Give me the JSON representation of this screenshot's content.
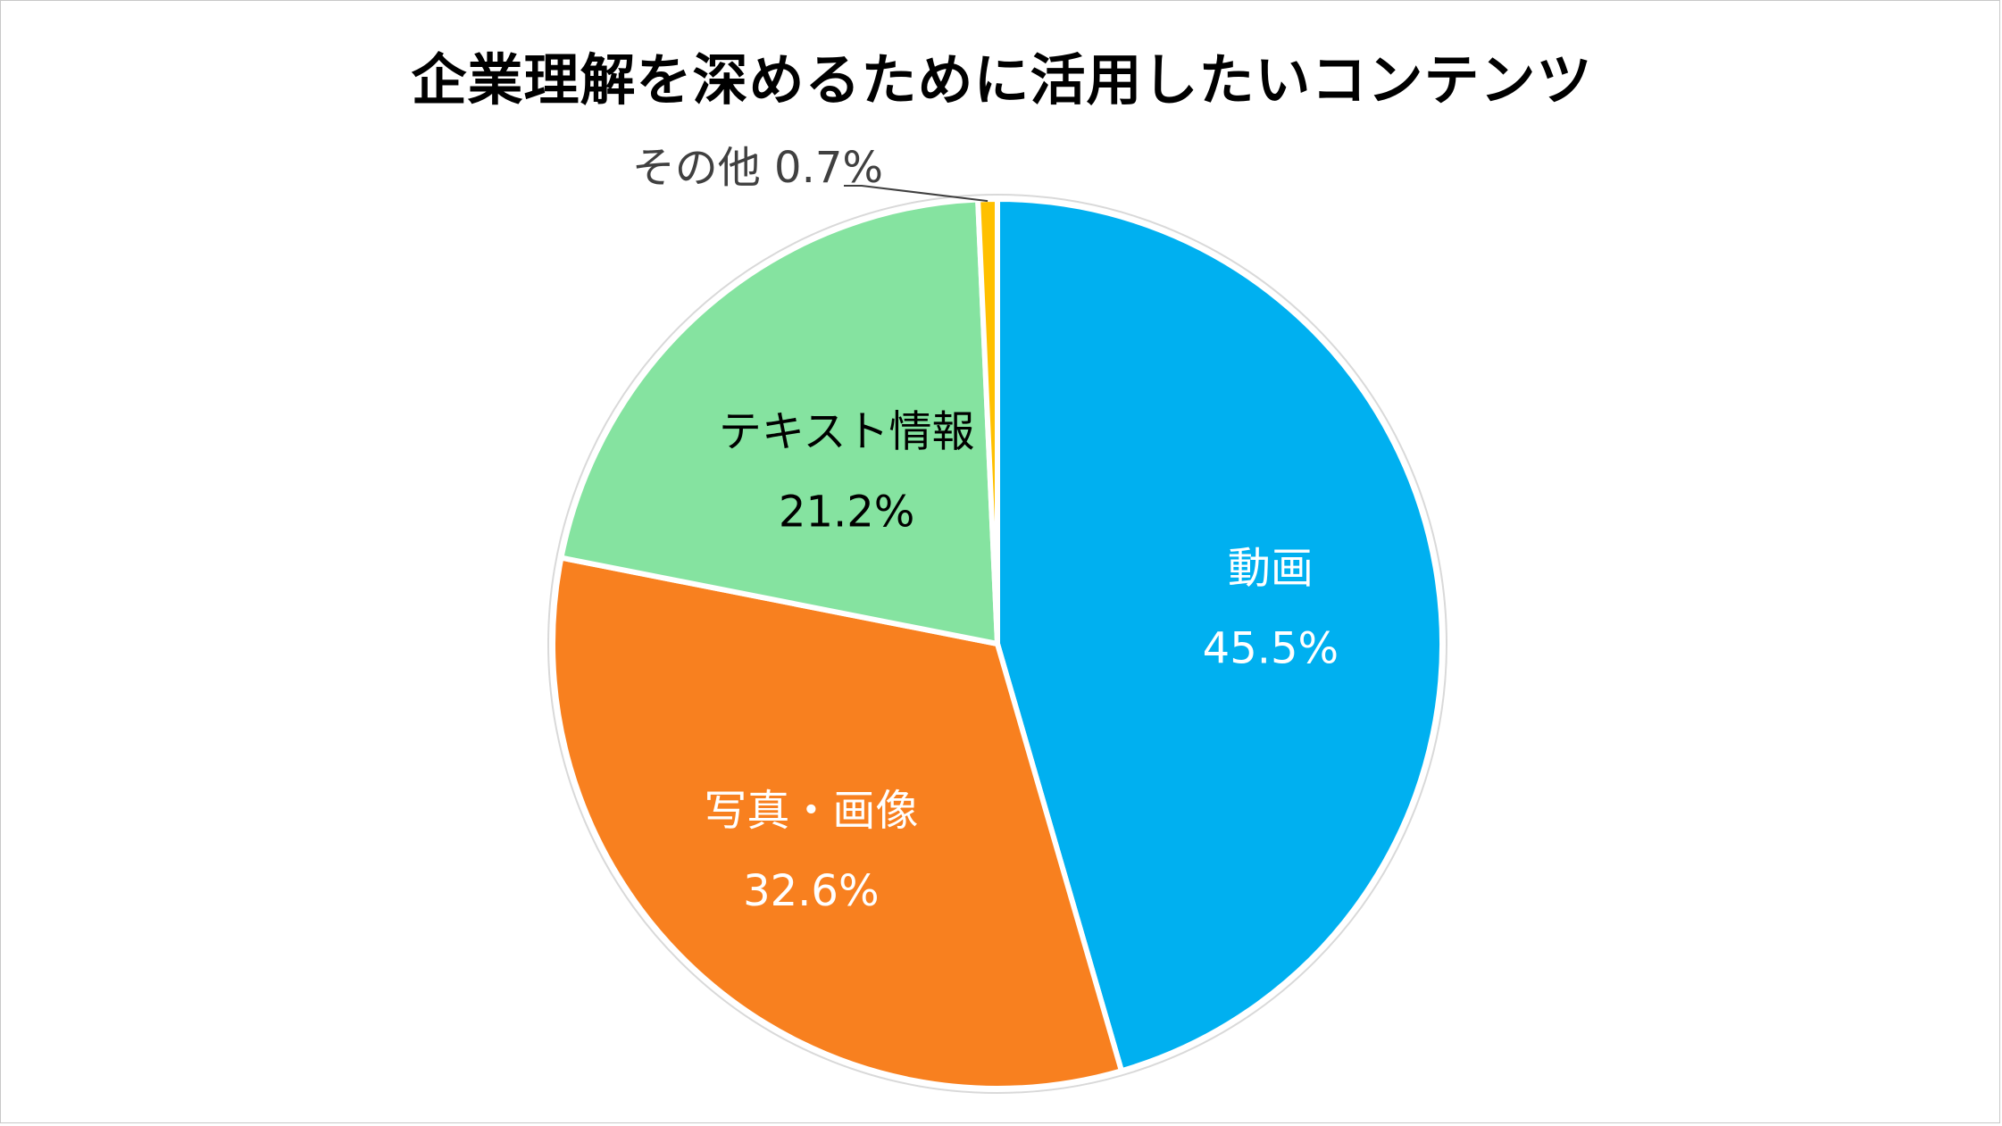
{
  "colors": {
    "dogа": "#00b0f0",
    "photo": "#f8801f",
    "text": "#85e3a0",
    "other": "#ffc000",
    "slice_border": "#ffffff",
    "outer_ring": "#d9d9d9",
    "label_dark": "#000000",
    "label_light": "#ffffff",
    "label_other": "#404040",
    "leader_line": "#404040"
  },
  "chart_data": {
    "type": "pie",
    "title": "企業理解を深めるために活用したいコンテンツ",
    "categories": [
      "動画",
      "写真・画像",
      "テキスト情報",
      "その他"
    ],
    "values": [
      45.5,
      32.6,
      21.2,
      0.7
    ],
    "value_labels": [
      "45.5%",
      "32.6%",
      "21.2%",
      "0.7%"
    ],
    "other_label": "その他 0.7%",
    "start_angle_deg": 0,
    "direction": "clockwise",
    "legend": "none"
  }
}
